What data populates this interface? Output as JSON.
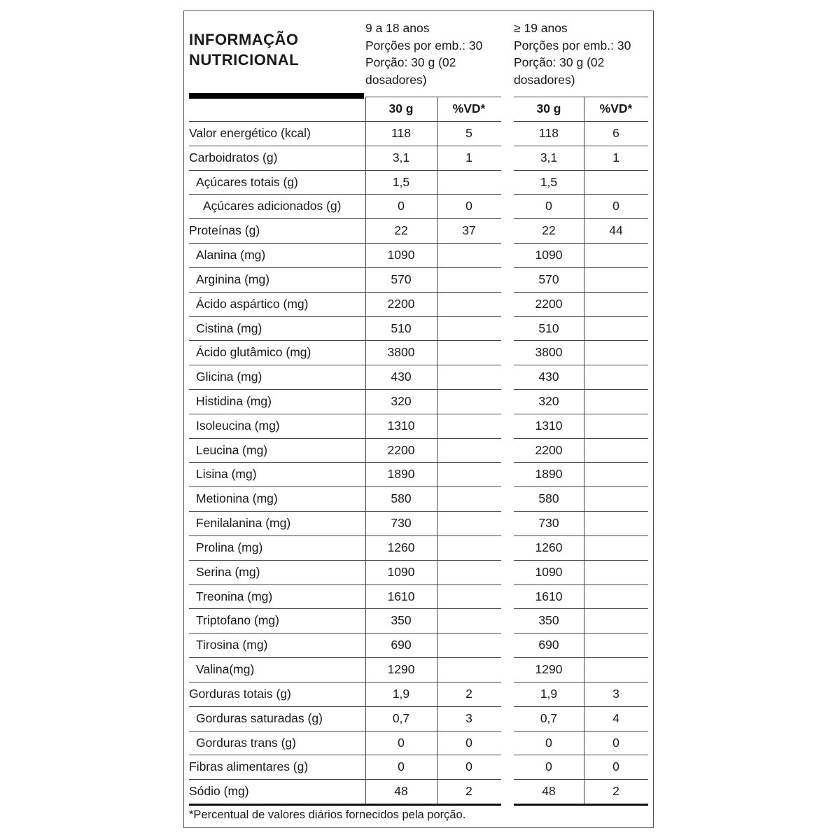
{
  "title_line1": "INFORMAÇÃO",
  "title_line2": "NUTRICIONAL",
  "groups": [
    {
      "age": "9 a 18 anos",
      "servings": "Porções por emb.: 30",
      "portion1": "Porção: 30 g (02",
      "portion2": "dosadores)",
      "col_amount": "30 g",
      "col_vd": "%VD*"
    },
    {
      "age": "≥ 19 anos",
      "servings": "Porções por emb.: 30",
      "portion1": "Porção: 30 g (02",
      "portion2": "dosadores)",
      "col_amount": "30 g",
      "col_vd": "%VD*"
    }
  ],
  "rows": [
    {
      "label": "Valor energético (kcal)",
      "indent": 0,
      "v": [
        "118",
        "5",
        "118",
        "6"
      ]
    },
    {
      "label": "Carboidratos (g)",
      "indent": 0,
      "v": [
        "3,1",
        "1",
        "3,1",
        "1"
      ]
    },
    {
      "label": "Açúcares totais (g)",
      "indent": 1,
      "v": [
        "1,5",
        "",
        "1,5",
        ""
      ]
    },
    {
      "label": "Açúcares adicionados (g)",
      "indent": 2,
      "v": [
        "0",
        "0",
        "0",
        "0"
      ]
    },
    {
      "label": "Proteínas (g)",
      "indent": 0,
      "v": [
        "22",
        "37",
        "22",
        "44"
      ]
    },
    {
      "label": "Alanina (mg)",
      "indent": 1,
      "v": [
        "1090",
        "",
        "1090",
        ""
      ]
    },
    {
      "label": "Arginina (mg)",
      "indent": 1,
      "v": [
        "570",
        "",
        "570",
        ""
      ]
    },
    {
      "label": "Ácido aspártico (mg)",
      "indent": 1,
      "v": [
        "2200",
        "",
        "2200",
        ""
      ]
    },
    {
      "label": "Cistina (mg)",
      "indent": 1,
      "v": [
        "510",
        "",
        "510",
        ""
      ]
    },
    {
      "label": "Ácido glutâmico (mg)",
      "indent": 1,
      "v": [
        "3800",
        "",
        "3800",
        ""
      ]
    },
    {
      "label": "Glicina (mg)",
      "indent": 1,
      "v": [
        "430",
        "",
        "430",
        ""
      ]
    },
    {
      "label": "Histidina (mg)",
      "indent": 1,
      "v": [
        "320",
        "",
        "320",
        ""
      ]
    },
    {
      "label": "Isoleucina (mg)",
      "indent": 1,
      "v": [
        "1310",
        "",
        "1310",
        ""
      ]
    },
    {
      "label": "Leucina (mg)",
      "indent": 1,
      "v": [
        "2200",
        "",
        "2200",
        ""
      ]
    },
    {
      "label": "Lisina (mg)",
      "indent": 1,
      "v": [
        "1890",
        "",
        "1890",
        ""
      ]
    },
    {
      "label": "Metionina (mg)",
      "indent": 1,
      "v": [
        "580",
        "",
        "580",
        ""
      ]
    },
    {
      "label": "Fenilalanina (mg)",
      "indent": 1,
      "v": [
        "730",
        "",
        "730",
        ""
      ]
    },
    {
      "label": "Prolina (mg)",
      "indent": 1,
      "v": [
        "1260",
        "",
        "1260",
        ""
      ]
    },
    {
      "label": "Serina (mg)",
      "indent": 1,
      "v": [
        "1090",
        "",
        "1090",
        ""
      ]
    },
    {
      "label": "Treonina (mg)",
      "indent": 1,
      "v": [
        "1610",
        "",
        "1610",
        ""
      ]
    },
    {
      "label": "Triptofano (mg)",
      "indent": 1,
      "v": [
        "350",
        "",
        "350",
        ""
      ]
    },
    {
      "label": "Tirosina (mg)",
      "indent": 1,
      "v": [
        "690",
        "",
        "690",
        ""
      ]
    },
    {
      "label": "Valina(mg)",
      "indent": 1,
      "v": [
        "1290",
        "",
        "1290",
        ""
      ]
    },
    {
      "label": "Gorduras totais (g)",
      "indent": 0,
      "v": [
        "1,9",
        "2",
        "1,9",
        "3"
      ]
    },
    {
      "label": "Gorduras saturadas (g)",
      "indent": 1,
      "v": [
        "0,7",
        "3",
        "0,7",
        "4"
      ]
    },
    {
      "label": "Gorduras trans (g)",
      "indent": 1,
      "v": [
        "0",
        "0",
        "0",
        "0"
      ]
    },
    {
      "label": "Fibras alimentares (g)",
      "indent": 0,
      "v": [
        "0",
        "0",
        "0",
        "0"
      ]
    },
    {
      "label": "Sódio (mg)",
      "indent": 0,
      "v": [
        "48",
        "2",
        "48",
        "2"
      ]
    }
  ],
  "footnote": "*Percentual de valores diários fornecidos pela porção."
}
